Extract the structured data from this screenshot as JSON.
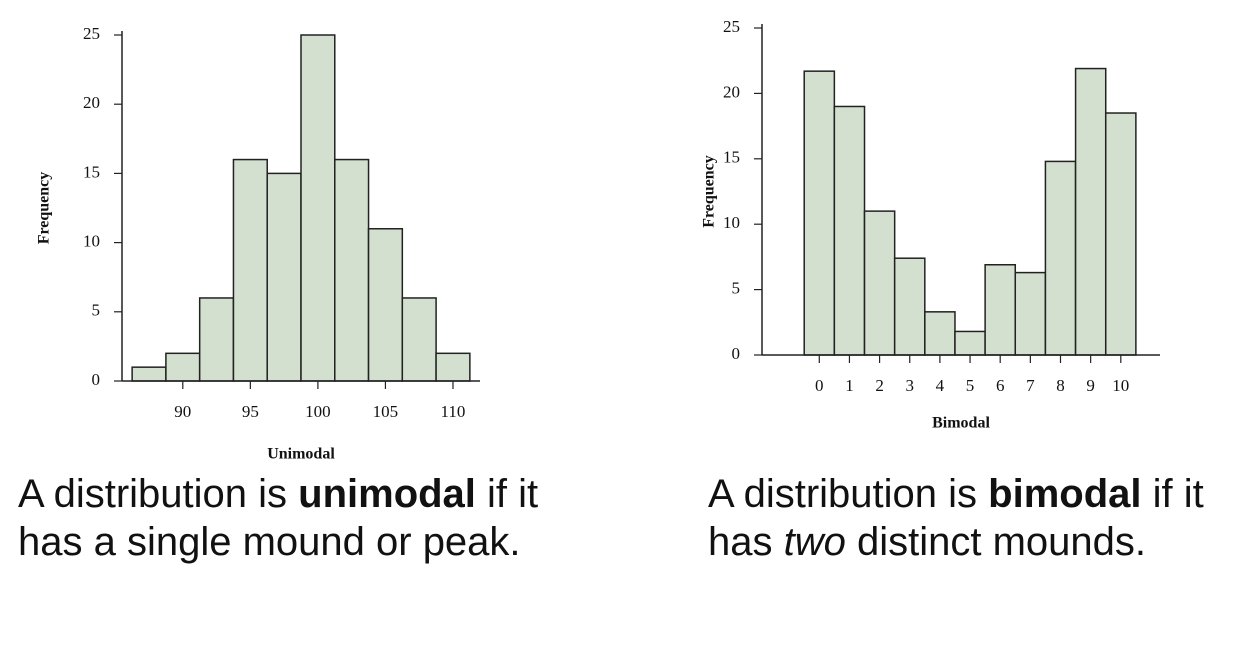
{
  "chart_data": [
    {
      "type": "histogram",
      "x_label": "Unimodal",
      "y_label": "Frequency",
      "color": "#d3dfcf",
      "bins": [
        86.25,
        88.75,
        91.25,
        93.75,
        96.25,
        98.75,
        101.25,
        103.75,
        106.25,
        108.75,
        111.25
      ],
      "values": [
        1,
        2,
        6,
        16,
        15,
        25,
        16,
        11,
        6,
        2
      ],
      "xlim": [
        85.5,
        112
      ],
      "xticks": [
        90,
        95,
        100,
        105,
        110
      ],
      "ylim": [
        0,
        25
      ],
      "yticks": [
        0,
        5,
        10,
        15,
        20,
        25
      ]
    },
    {
      "type": "histogram",
      "x_label": "Bimodal",
      "y_label": "Frequency",
      "color": "#d3dfcf",
      "bins": [
        -0.5,
        0.5,
        1.5,
        2.5,
        3.5,
        4.5,
        5.5,
        6.5,
        7.5,
        8.5,
        9.5,
        10.5
      ],
      "values": [
        21.7,
        19,
        11,
        7.4,
        3.3,
        1.8,
        6.9,
        6.3,
        14.8,
        21.9,
        18.5
      ],
      "xlim": [
        -1.9,
        11.3
      ],
      "xticks": [
        0,
        1,
        2,
        3,
        4,
        5,
        6,
        7,
        8,
        9,
        10
      ],
      "ylim": [
        0,
        25
      ],
      "yticks": [
        0,
        5,
        10,
        15,
        20,
        25
      ]
    }
  ],
  "captions": [
    [
      "A distribution is ",
      "unimodal",
      " if it has a single mound or peak."
    ],
    [
      "A distribution is ",
      "bimodal",
      " if it has ",
      "two",
      " distinct mounds."
    ]
  ]
}
